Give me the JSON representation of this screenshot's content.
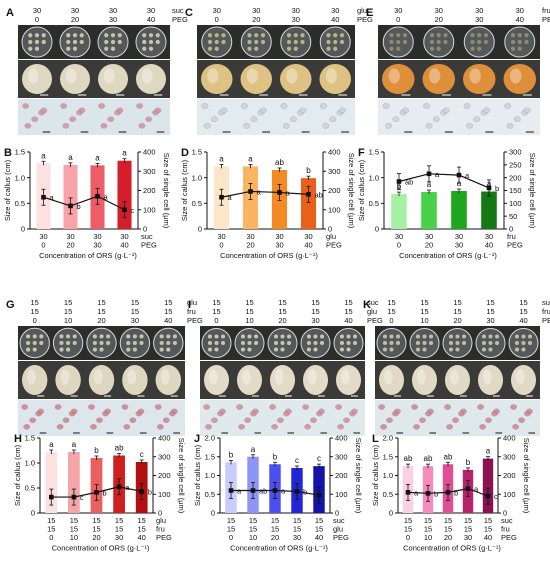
{
  "conc_axis_label": "Concentration of ORS (g·L⁻¹)",
  "y_left_label": "Size of callus (cm)",
  "y_right_label": "Size of single cell (μm)",
  "photo_panels": [
    {
      "letter": "A",
      "rows": [
        [
          "30",
          "30",
          "30",
          "30"
        ],
        [
          "0",
          "20",
          "30",
          "40"
        ]
      ],
      "row_names": [
        "suc",
        "PEG"
      ]
    },
    {
      "letter": "C",
      "rows": [
        [
          "30",
          "30",
          "30",
          "30"
        ],
        [
          "0",
          "20",
          "30",
          "40"
        ]
      ],
      "row_names": [
        "glu",
        "PEG"
      ]
    },
    {
      "letter": "E",
      "rows": [
        [
          "30",
          "30",
          "30",
          "30"
        ],
        [
          "0",
          "20",
          "30",
          "40"
        ]
      ],
      "row_names": [
        "fru",
        "PEG"
      ]
    },
    {
      "letter": "G",
      "rows": [
        [
          "15",
          "15",
          "15",
          "15",
          "15"
        ],
        [
          "15",
          "15",
          "15",
          "15",
          "15"
        ],
        [
          "0",
          "10",
          "20",
          "30",
          "40"
        ]
      ],
      "row_names": [
        "glu",
        "fru",
        "PEG"
      ]
    },
    {
      "letter": "I",
      "rows": [
        [
          "15",
          "15",
          "15",
          "15",
          "15"
        ],
        [
          "15",
          "15",
          "15",
          "15",
          "15"
        ],
        [
          "0",
          "10",
          "20",
          "30",
          "40"
        ]
      ],
      "row_names": [
        "suc",
        "glu",
        "PEG"
      ]
    },
    {
      "letter": "K",
      "rows": [
        [
          "15",
          "15",
          "15",
          "15",
          "15"
        ],
        [
          "15",
          "15",
          "15",
          "15",
          "15"
        ],
        [
          "0",
          "10",
          "20",
          "30",
          "40"
        ]
      ],
      "row_names": [
        "suc",
        "fru",
        "PEG"
      ]
    }
  ],
  "chart_data": [
    {
      "letter": "B",
      "type": "bar+line",
      "ylim_left": [
        0,
        1.5
      ],
      "ylim_right": [
        0,
        400
      ],
      "yticks_left": [
        "0",
        "0.5",
        "1.0",
        "1.5"
      ],
      "yticks_right": [
        "0",
        "100",
        "200",
        "300",
        "400"
      ],
      "rows": [
        [
          "30",
          "30",
          "30",
          "30"
        ],
        [
          "0",
          "20",
          "30",
          "40"
        ]
      ],
      "row_names": [
        "suc",
        "PEG"
      ],
      "bar_values": [
        1.28,
        1.25,
        1.24,
        1.33
      ],
      "bar_sig": [
        "a",
        "a",
        "a",
        "a"
      ],
      "line_values": [
        165,
        120,
        170,
        100
      ],
      "line_sig": [
        "a",
        "b",
        "a",
        "c"
      ],
      "bar_colors": [
        "#fde0e0",
        "#f7a3a8",
        "#ee5c66",
        "#d41e2c"
      ]
    },
    {
      "letter": "D",
      "type": "bar+line",
      "ylim_left": [
        0,
        1.5
      ],
      "ylim_right": [
        0,
        400
      ],
      "yticks_left": [
        "0",
        "0.5",
        "1.0",
        "1.5"
      ],
      "yticks_right": [
        "0",
        "100",
        "200",
        "300",
        "400"
      ],
      "rows": [
        [
          "30",
          "30",
          "30",
          "30"
        ],
        [
          "0",
          "20",
          "30",
          "40"
        ]
      ],
      "row_names": [
        "glu",
        "PEG"
      ],
      "bar_values": [
        1.22,
        1.22,
        1.15,
        0.99
      ],
      "bar_sig": [
        "a",
        "a",
        "ab",
        "b"
      ],
      "line_values": [
        165,
        195,
        190,
        180
      ],
      "line_sig": [
        "a",
        "a",
        "a",
        "ab"
      ],
      "bar_colors": [
        "#fde6c8",
        "#fbb562",
        "#f48a24",
        "#e8601a"
      ]
    },
    {
      "letter": "F",
      "type": "bar+line",
      "ylim_left": [
        0,
        1.5
      ],
      "ylim_right": [
        0,
        300
      ],
      "yticks_left": [
        "0",
        "0.5",
        "1.0",
        "1.5"
      ],
      "yticks_right": [
        "0",
        "50",
        "100",
        "150",
        "200",
        "250",
        "300"
      ],
      "rows": [
        [
          "30",
          "30",
          "30",
          "30"
        ],
        [
          "0",
          "20",
          "30",
          "40"
        ]
      ],
      "row_names": [
        "fru",
        "PEG"
      ],
      "bar_values": [
        0.68,
        0.72,
        0.74,
        0.73
      ],
      "bar_sig": [
        "b",
        "a",
        "a",
        "a"
      ],
      "line_values": [
        185,
        215,
        210,
        160
      ],
      "line_sig": [
        "ab",
        "a",
        "a",
        "b"
      ],
      "bar_colors": [
        "#a6f0a6",
        "#4ad14a",
        "#1fa61f",
        "#157a15"
      ]
    },
    {
      "letter": "H",
      "type": "bar+line",
      "ylim_left": [
        0,
        1.5
      ],
      "ylim_right": [
        0,
        400
      ],
      "yticks_left": [
        "0",
        "0.5",
        "1.0",
        "1.5"
      ],
      "yticks_right": [
        "0",
        "100",
        "200",
        "300",
        "400"
      ],
      "rows": [
        [
          "15",
          "15",
          "15",
          "15",
          "15"
        ],
        [
          "15",
          "15",
          "15",
          "15",
          "15"
        ],
        [
          "0",
          "10",
          "20",
          "30",
          "40"
        ]
      ],
      "row_names": [
        "glu",
        "fru",
        "PEG"
      ],
      "bar_values": [
        1.22,
        1.22,
        1.1,
        1.15,
        1.02
      ],
      "bar_sig": [
        "a",
        "a",
        "b",
        "ab",
        "c"
      ],
      "line_values": [
        85,
        85,
        110,
        140,
        115
      ],
      "line_sig": [
        "",
        "c",
        "b",
        "a",
        "b"
      ],
      "bar_colors": [
        "#fde0e0",
        "#f5a5a5",
        "#e86060",
        "#cf2020",
        "#b01010"
      ]
    },
    {
      "letter": "J",
      "type": "bar+line",
      "ylim_left": [
        0,
        2.0
      ],
      "ylim_right": [
        0,
        400
      ],
      "yticks_left": [
        "0",
        "0.5",
        "1.0",
        "1.5",
        "2.0"
      ],
      "yticks_right": [
        "0",
        "100",
        "200",
        "300",
        "400"
      ],
      "rows": [
        [
          "15",
          "15",
          "15",
          "15",
          "15"
        ],
        [
          "15",
          "15",
          "15",
          "15",
          "15"
        ],
        [
          "0",
          "10",
          "20",
          "30",
          "40"
        ]
      ],
      "row_names": [
        "suc",
        "glu",
        "PEG"
      ],
      "bar_values": [
        1.35,
        1.5,
        1.3,
        1.2,
        1.25
      ],
      "bar_sig": [
        "b",
        "a",
        "b",
        "c",
        "c"
      ],
      "line_values": [
        120,
        120,
        120,
        115,
        95
      ],
      "line_sig": [
        "a",
        "ab",
        "a",
        "b",
        ""
      ],
      "bar_colors": [
        "#c9cdfc",
        "#8f95f7",
        "#4a4ff0",
        "#2226d6",
        "#1414a8"
      ]
    },
    {
      "letter": "L",
      "type": "bar+line",
      "ylim_left": [
        0,
        2.0
      ],
      "ylim_right": [
        0,
        400
      ],
      "yticks_left": [
        "0",
        "0.5",
        "1.0",
        "1.5",
        "2.0"
      ],
      "yticks_right": [
        "0",
        "100",
        "200",
        "300",
        "400"
      ],
      "rows": [
        [
          "15",
          "15",
          "15",
          "15",
          "15"
        ],
        [
          "15",
          "15",
          "15",
          "15",
          "15"
        ],
        [
          "0",
          "10",
          "20",
          "30",
          "40"
        ]
      ],
      "row_names": [
        "suc",
        "fru",
        "PEG"
      ],
      "bar_values": [
        1.25,
        1.25,
        1.3,
        1.15,
        1.45
      ],
      "bar_sig": [
        "ab",
        "ab",
        "ab",
        "b",
        "a"
      ],
      "line_values": [
        110,
        105,
        110,
        130,
        90
      ],
      "line_sig": [
        "a",
        "b",
        "b",
        "a",
        "c"
      ],
      "bar_colors": [
        "#fbd0e4",
        "#f58cbd",
        "#e04f95",
        "#b8216c",
        "#8a1250"
      ]
    }
  ]
}
